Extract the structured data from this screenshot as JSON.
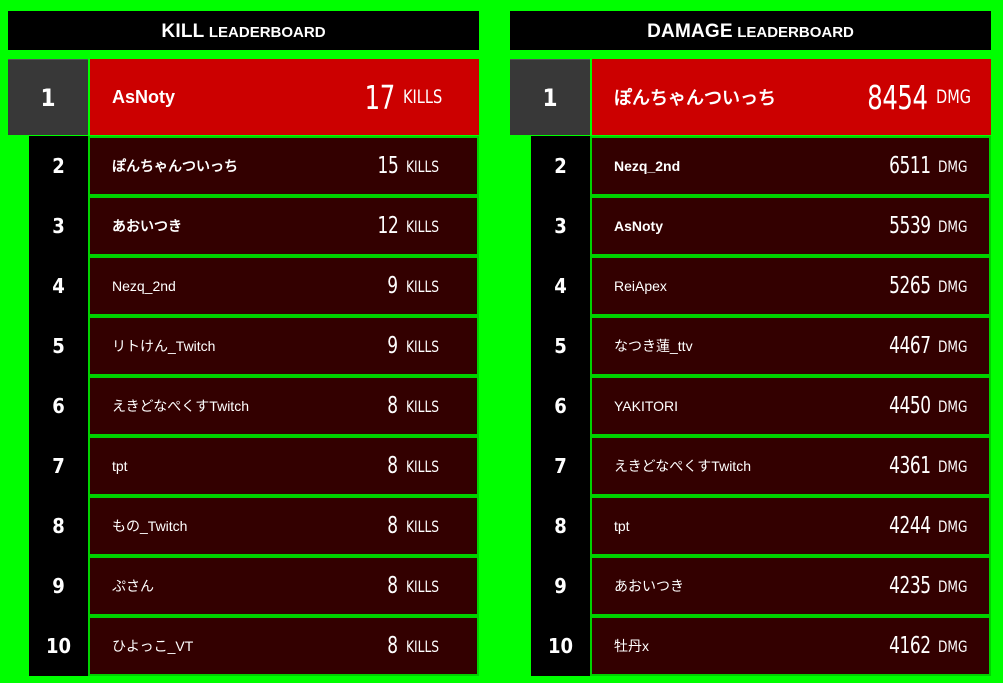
{
  "kill_board": {
    "title_main": "KILL",
    "title_sub": "LEADERBOARD",
    "unit": "KILLS",
    "entries": [
      {
        "rank": "1",
        "name": "AsNoty",
        "value": "17"
      },
      {
        "rank": "2",
        "name": "ぽんちゃんついっち",
        "value": "15"
      },
      {
        "rank": "3",
        "name": "あおいつき",
        "value": "12"
      },
      {
        "rank": "4",
        "name": "Nezq_2nd",
        "value": "9"
      },
      {
        "rank": "5",
        "name": "リトけん_Twitch",
        "value": "9"
      },
      {
        "rank": "6",
        "name": "えきどなぺくすTwitch",
        "value": "8"
      },
      {
        "rank": "7",
        "name": "tpt",
        "value": "8"
      },
      {
        "rank": "8",
        "name": "もの_Twitch",
        "value": "8"
      },
      {
        "rank": "9",
        "name": "ぷさん",
        "value": "8"
      },
      {
        "rank": "10",
        "name": "ひよっこ_VT",
        "value": "8"
      }
    ]
  },
  "damage_board": {
    "title_main": "DAMAGE",
    "title_sub": "LEADERBOARD",
    "unit": "DMG",
    "entries": [
      {
        "rank": "1",
        "name": "ぽんちゃんついっち",
        "value": "8454"
      },
      {
        "rank": "2",
        "name": "Nezq_2nd",
        "value": "6511"
      },
      {
        "rank": "3",
        "name": "AsNoty",
        "value": "5539"
      },
      {
        "rank": "4",
        "name": "ReiApex",
        "value": "5265"
      },
      {
        "rank": "5",
        "name": "なつき蓮_ttv",
        "value": "4467"
      },
      {
        "rank": "6",
        "name": "YAKITORI",
        "value": "4450"
      },
      {
        "rank": "7",
        "name": "えきどなぺくすTwitch",
        "value": "4361"
      },
      {
        "rank": "8",
        "name": "tpt",
        "value": "4244"
      },
      {
        "rank": "9",
        "name": "あおいつき",
        "value": "4235"
      },
      {
        "rank": "10",
        "name": "牡丹x",
        "value": "4162"
      }
    ]
  },
  "colors": {
    "background": "#00ff00",
    "header_bg": "#000000",
    "first_row_bg": "#cc0000",
    "row_bg": "#330000",
    "row_border": "#00d200",
    "first_rank_bg": "#383838"
  }
}
